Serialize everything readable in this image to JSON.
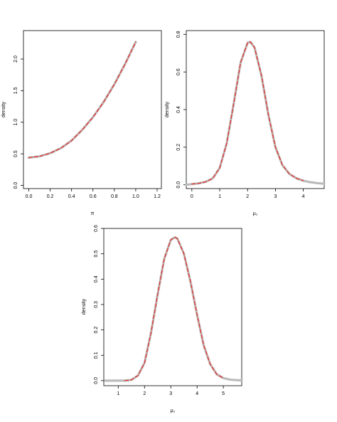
{
  "chart_data": [
    {
      "type": "line",
      "xlabel": "π",
      "ylabel": "density",
      "xlim": [
        -0.05,
        1.24
      ],
      "ylim": [
        -0.05,
        2.45
      ],
      "xticks": [
        "0.0",
        "0.2",
        "0.4",
        "0.6",
        "0.8",
        "1.0",
        "1.2"
      ],
      "yticks": [
        "0.0",
        "0.5",
        "1.0",
        "1.5",
        "2.0"
      ],
      "series": [
        {
          "color": "#bbbbbb",
          "x": [
            0.0,
            0.1,
            0.2,
            0.3,
            0.4,
            0.5,
            0.6,
            0.7,
            0.8,
            0.9,
            1.0
          ],
          "y": [
            0.44,
            0.46,
            0.51,
            0.59,
            0.71,
            0.88,
            1.08,
            1.32,
            1.6,
            1.92,
            2.27
          ]
        },
        {
          "color": "#e3342f",
          "dashed": true,
          "x": [
            0.0,
            0.1,
            0.2,
            0.3,
            0.4,
            0.5,
            0.6,
            0.7,
            0.8,
            0.9,
            1.0
          ],
          "y": [
            0.44,
            0.46,
            0.51,
            0.59,
            0.71,
            0.88,
            1.08,
            1.32,
            1.6,
            1.92,
            2.27
          ]
        }
      ]
    },
    {
      "type": "line",
      "xlabel": "μ₁",
      "ylabel": "density",
      "xlim": [
        -0.2,
        4.75
      ],
      "ylim": [
        -0.02,
        0.82
      ],
      "xticks": [
        "0",
        "1",
        "2",
        "3",
        "4"
      ],
      "yticks": [
        "0.0",
        "0.2",
        "0.4",
        "0.6",
        "0.8"
      ],
      "series": [
        {
          "color": "#bbbbbb",
          "x": [
            -0.2,
            0.0,
            0.25,
            0.5,
            0.75,
            1.0,
            1.25,
            1.5,
            1.75,
            2.0,
            2.1,
            2.25,
            2.5,
            2.75,
            3.0,
            3.25,
            3.5,
            3.75,
            4.0,
            4.25,
            4.5,
            4.75
          ],
          "y": [
            0.0,
            0.004,
            0.008,
            0.016,
            0.034,
            0.09,
            0.22,
            0.43,
            0.65,
            0.755,
            0.76,
            0.73,
            0.58,
            0.37,
            0.2,
            0.105,
            0.058,
            0.035,
            0.022,
            0.014,
            0.009,
            0.006
          ]
        },
        {
          "color": "#e3342f",
          "dashed": true,
          "x": [
            0.0,
            0.25,
            0.5,
            0.75,
            1.0,
            1.25,
            1.5,
            1.75,
            2.0,
            2.1,
            2.25,
            2.5,
            2.75,
            3.0,
            3.25,
            3.5,
            3.75,
            4.0
          ],
          "y": [
            0.004,
            0.008,
            0.016,
            0.034,
            0.09,
            0.22,
            0.43,
            0.65,
            0.755,
            0.76,
            0.73,
            0.58,
            0.37,
            0.2,
            0.105,
            0.058,
            0.035,
            0.022
          ]
        }
      ]
    },
    {
      "type": "line",
      "xlabel": "μ₂",
      "ylabel": "density",
      "xlim": [
        0.45,
        5.7
      ],
      "ylim": [
        -0.02,
        0.6
      ],
      "xticks": [
        "1",
        "2",
        "3",
        "4",
        "5"
      ],
      "yticks": [
        "0.0",
        "0.1",
        "0.2",
        "0.3",
        "0.4",
        "0.5",
        "0.6"
      ],
      "series": [
        {
          "color": "#bbbbbb",
          "x": [
            0.5,
            1.0,
            1.25,
            1.5,
            1.75,
            2.0,
            2.25,
            2.5,
            2.75,
            3.0,
            3.15,
            3.25,
            3.5,
            3.75,
            4.0,
            4.25,
            4.5,
            4.75,
            5.0,
            5.25,
            5.5,
            5.7
          ],
          "y": [
            0.0,
            0.0,
            0.0,
            0.003,
            0.02,
            0.07,
            0.19,
            0.34,
            0.48,
            0.555,
            0.565,
            0.56,
            0.5,
            0.39,
            0.26,
            0.14,
            0.065,
            0.025,
            0.01,
            0.004,
            0.002,
            0.001
          ]
        },
        {
          "color": "#e3342f",
          "dashed": true,
          "x": [
            1.25,
            1.5,
            1.75,
            2.0,
            2.25,
            2.5,
            2.75,
            3.0,
            3.15,
            3.25,
            3.5,
            3.75,
            4.0,
            4.25,
            4.5,
            4.75,
            5.0
          ],
          "y": [
            0.0,
            0.003,
            0.02,
            0.07,
            0.19,
            0.34,
            0.48,
            0.555,
            0.565,
            0.56,
            0.5,
            0.39,
            0.26,
            0.14,
            0.065,
            0.025,
            0.01
          ]
        }
      ]
    }
  ]
}
